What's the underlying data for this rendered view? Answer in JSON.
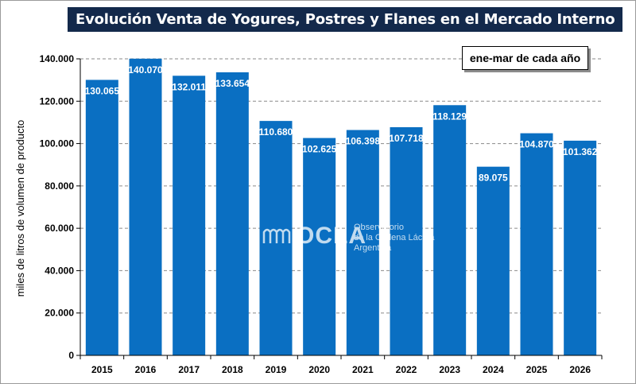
{
  "chart_data": {
    "type": "bar",
    "title": "Evolución Venta de Yogures, Postres y Flanes en el Mercado Interno",
    "subtitle": "ene-mar de cada año",
    "ylabel": "miles de litros de volumen de producto",
    "categories": [
      "2015",
      "2016",
      "2017",
      "2018",
      "2019",
      "2020",
      "2021",
      "2022",
      "2023",
      "2024",
      "2025",
      "2026"
    ],
    "values": [
      130065,
      140070,
      132011,
      133654,
      110680,
      102625,
      106398,
      107718,
      118129,
      89075,
      104870,
      101362
    ],
    "value_labels": [
      "130.065",
      "140.070",
      "132.011",
      "133.654",
      "110.680",
      "102.625",
      "106.398",
      "107.718",
      "118.129",
      "89.075",
      "104.870",
      "101.362"
    ],
    "yticks": [
      0,
      20000,
      40000,
      60000,
      80000,
      100000,
      120000,
      140000
    ],
    "ytick_labels": [
      "0",
      "20.000",
      "40.000",
      "60.000",
      "80.000",
      "100.000",
      "120.000",
      "140.000"
    ],
    "ylim": [
      0,
      140000
    ],
    "grid": true,
    "bar_color": "#0a6fc2"
  },
  "watermark": {
    "logo": "OCLA",
    "lines": [
      "Observatorio",
      "de la Cadena Láctea",
      "Argentina"
    ]
  }
}
